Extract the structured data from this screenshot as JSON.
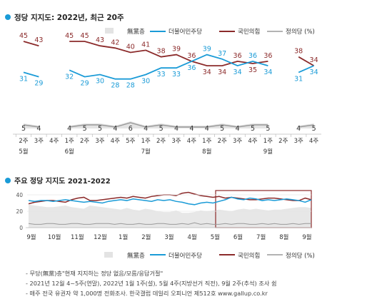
{
  "colors": {
    "minjoo": "#1a9bd7",
    "ppp": "#8b2a2a",
    "justice": "#9a9a9a",
    "none": "#e3e3e3",
    "title_bullet": "#1a9bd7",
    "highlight": "#8b2a2a"
  },
  "legend": {
    "none": "無黨층",
    "minjoo": "더불어민주당",
    "ppp": "국민의힘",
    "justice": "정의당 (%)"
  },
  "chart_data": [
    {
      "type": "line",
      "title": "정당 지지도: 2022년, 최근 20주",
      "x_tick_labels": [
        "2주",
        "3주",
        "4주",
        "1주",
        "2주",
        "3주",
        "4주",
        "5주",
        "1주",
        "2주",
        "3주",
        "4주",
        "1주",
        "2주",
        "3주",
        "4주",
        "1주",
        "2주",
        "3주",
        "4주"
      ],
      "month_labels": [
        {
          "label": "5월",
          "index": 0
        },
        {
          "label": "6월",
          "index": 3
        },
        {
          "label": "7월",
          "index": 8
        },
        {
          "label": "8월",
          "index": 12
        },
        {
          "label": "9월",
          "index": 16
        }
      ],
      "segments": [
        {
          "start": 0,
          "end": 1
        },
        {
          "start": 3,
          "end": 16
        },
        {
          "start": 18,
          "end": 19
        }
      ],
      "series": [
        {
          "name": "국민의힘",
          "values": [
            45,
            43,
            null,
            45,
            45,
            43,
            42,
            40,
            41,
            38,
            39,
            36,
            34,
            34,
            36,
            35,
            36,
            null,
            38,
            34
          ]
        },
        {
          "name": "더불어민주당",
          "values": [
            31,
            29,
            null,
            32,
            29,
            30,
            28,
            28,
            30,
            33,
            33,
            36,
            39,
            37,
            34,
            36,
            34,
            null,
            31,
            34
          ]
        },
        {
          "name": "정의당",
          "values": [
            5,
            4,
            null,
            4,
            5,
            5,
            4,
            6,
            4,
            5,
            4,
            4,
            4,
            5,
            4,
            5,
            5,
            null,
            4,
            5
          ]
        }
      ],
      "none_party_note": "無黨층 shown as light gray area"
    },
    {
      "type": "line",
      "title": "주요 정당 지지도 2021-2022",
      "ylim": [
        0,
        40
      ],
      "y_ticks": [
        "40",
        "20",
        "0"
      ],
      "x_tick_labels": [
        "9월",
        "10월",
        "11월",
        "12월",
        "1월",
        "2월",
        "3월",
        "4월",
        "5월",
        "6월",
        "7월",
        "8월",
        "9월"
      ],
      "series": [
        {
          "name": "국민의힘",
          "values": [
            29,
            31,
            32,
            33,
            33,
            32,
            31,
            34,
            36,
            37,
            33,
            33,
            34,
            35,
            36,
            37,
            36,
            38,
            37,
            36,
            38,
            39,
            40,
            40,
            39,
            42,
            43,
            41,
            39,
            38,
            37,
            38,
            36,
            37,
            36,
            35,
            34,
            34,
            35,
            36,
            36,
            35,
            34,
            33,
            33,
            36,
            34
          ]
        },
        {
          "name": "더불어민주당",
          "values": [
            33,
            32,
            33,
            33,
            32,
            33,
            34,
            33,
            32,
            31,
            32,
            31,
            30,
            32,
            33,
            34,
            33,
            35,
            34,
            33,
            32,
            34,
            33,
            34,
            32,
            31,
            29,
            28,
            30,
            31,
            30,
            32,
            34,
            37,
            35,
            34,
            36,
            35,
            33,
            34,
            33,
            34,
            35,
            34,
            33,
            31,
            34
          ]
        },
        {
          "name": "정의당",
          "values": [
            5,
            4,
            4,
            5,
            5,
            4,
            4,
            5,
            5,
            4,
            4,
            5,
            5,
            5,
            4,
            5,
            4,
            4,
            5,
            4,
            4,
            5,
            5,
            4,
            4,
            5,
            4,
            6,
            4,
            5,
            4,
            4,
            5,
            4,
            5,
            5,
            4,
            4,
            5,
            4,
            5,
            4,
            4,
            5,
            4,
            5,
            5
          ]
        },
        {
          "name": "無黨층",
          "values": [
            28,
            27,
            26,
            25,
            25,
            26,
            27,
            25,
            24,
            23,
            27,
            26,
            25,
            24,
            23,
            22,
            24,
            22,
            21,
            23,
            22,
            20,
            19,
            19,
            21,
            18,
            18,
            19,
            21,
            20,
            21,
            22,
            21,
            20,
            22,
            23,
            22,
            23,
            22,
            21,
            22,
            22,
            23,
            24,
            25,
            25,
            24
          ]
        }
      ]
    }
  ],
  "notes": [
    "- 무당(無黨)층\"현재 지지하는 정당 없음/모름/응답거절\"",
    "- 2021년 12월 4~5주(연말), 2022년 1월 1주(설), 5월 4주(지방선거 직전), 9월 2주(추석) 조사 쉼",
    "- 매주 전국 유권자 약 1,000명 전화조사. 한국갤럽 데일리 오피니언 제512호 www.gallup.co.kr"
  ]
}
